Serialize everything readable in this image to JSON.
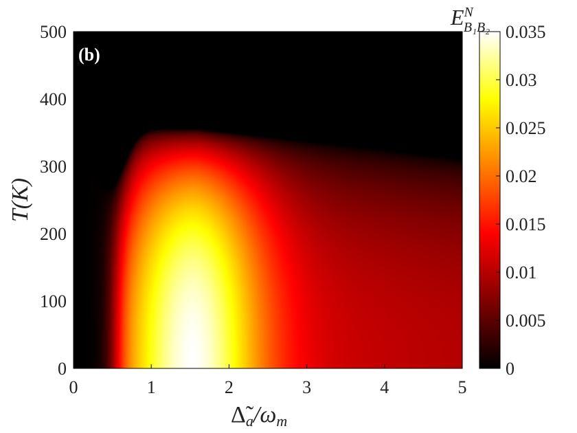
{
  "chart_data": {
    "type": "heatmap",
    "panel_label": "(b)",
    "x": {
      "label_main": "Δ̃",
      "label_sub": "a",
      "label_rest": "/ω",
      "label_rest_sub": "m",
      "range": [
        0,
        5
      ],
      "ticks": [
        0,
        1,
        2,
        3,
        4,
        5
      ],
      "tick_labels": [
        "0",
        "1",
        "2",
        "3",
        "4",
        "5"
      ]
    },
    "y": {
      "label": "T(K)",
      "range": [
        0,
        500
      ],
      "ticks": [
        0,
        100,
        200,
        300,
        400,
        500
      ],
      "tick_labels": [
        "0",
        "100",
        "200",
        "300",
        "400",
        "500"
      ]
    },
    "colorbar": {
      "title_main": "E",
      "title_sup": "N",
      "title_sub": "B₁B₂",
      "range": [
        0,
        0.035
      ],
      "ticks": [
        0,
        0.005,
        0.01,
        0.015,
        0.02,
        0.025,
        0.03,
        0.035
      ],
      "tick_labels": [
        "0",
        "0.005",
        "0.01",
        "0.015",
        "0.02",
        "0.025",
        "0.03",
        "0.035"
      ],
      "colormap": "hot",
      "colors": [
        "#000000",
        "#800000",
        "#ff0000",
        "#ff8000",
        "#ffff00",
        "#ffffff"
      ]
    },
    "model": {
      "description_values": "entanglement peak near x=1.5 at low T, vanishing above threshold temperature",
      "peak_x": 1.55,
      "peak_value": 0.035,
      "onset_x": 0.38,
      "cutoff_T_peak": 355,
      "cutoff_T_right": 310
    }
  }
}
